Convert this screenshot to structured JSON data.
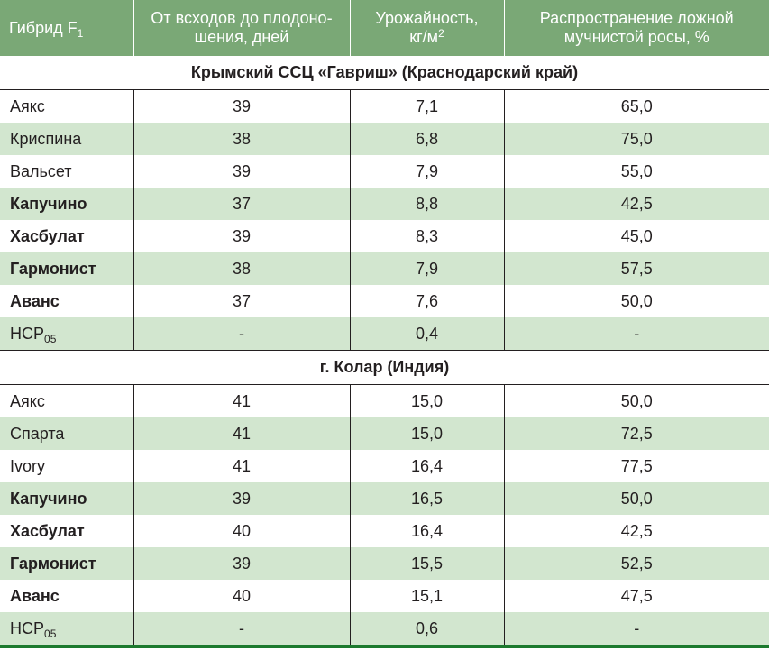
{
  "header": {
    "col1": "Гибрид F",
    "col1_sub": "1",
    "col2_line1": "От всходов до плодоно-",
    "col2_line2": "шения, дней",
    "col3_line1": "Урожайность,",
    "col3_line2": "кг/м",
    "col3_sup": "2",
    "col4_line1": "Распространение ложной",
    "col4_line2": "мучнистой росы, %"
  },
  "sections": [
    {
      "title": "Крымский ССЦ «Гавриш» (Краснодарский край)",
      "rows": [
        {
          "name": "Аякс",
          "days": "39",
          "yield": "7,1",
          "disease": "65,0",
          "bold": false
        },
        {
          "name": "Криспина",
          "days": "38",
          "yield": "6,8",
          "disease": "75,0",
          "bold": false
        },
        {
          "name": "Вальсет",
          "days": "39",
          "yield": "7,9",
          "disease": "55,0",
          "bold": false
        },
        {
          "name": "Капучино",
          "days": "37",
          "yield": "8,8",
          "disease": "42,5",
          "bold": true
        },
        {
          "name": "Хасбулат",
          "days": "39",
          "yield": "8,3",
          "disease": "45,0",
          "bold": true
        },
        {
          "name": "Гармонист",
          "days": "38",
          "yield": "7,9",
          "disease": "57,5",
          "bold": true
        },
        {
          "name": "Аванс",
          "days": "37",
          "yield": "7,6",
          "disease": "50,0",
          "bold": true
        }
      ],
      "hcp": {
        "name": "НСР",
        "sub": "05",
        "days": "-",
        "yield": "0,4",
        "disease": "-"
      }
    },
    {
      "title": "г. Колар (Индия)",
      "rows": [
        {
          "name": "Аякс",
          "days": "41",
          "yield": "15,0",
          "disease": "50,0",
          "bold": false
        },
        {
          "name": "Спарта",
          "days": "41",
          "yield": "15,0",
          "disease": "72,5",
          "bold": false
        },
        {
          "name": "Ivory",
          "days": "41",
          "yield": "16,4",
          "disease": "77,5",
          "bold": false
        },
        {
          "name": "Капучино",
          "days": "39",
          "yield": "16,5",
          "disease": "50,0",
          "bold": true
        },
        {
          "name": "Хасбулат",
          "days": "40",
          "yield": "16,4",
          "disease": "42,5",
          "bold": true
        },
        {
          "name": "Гармонист",
          "days": "39",
          "yield": "15,5",
          "disease": "52,5",
          "bold": true
        },
        {
          "name": "Аванс",
          "days": "40",
          "yield": "15,1",
          "disease": "47,5",
          "bold": true
        }
      ],
      "hcp": {
        "name": "НСР",
        "sub": "05",
        "days": "-",
        "yield": "0,6",
        "disease": "-"
      }
    }
  ]
}
